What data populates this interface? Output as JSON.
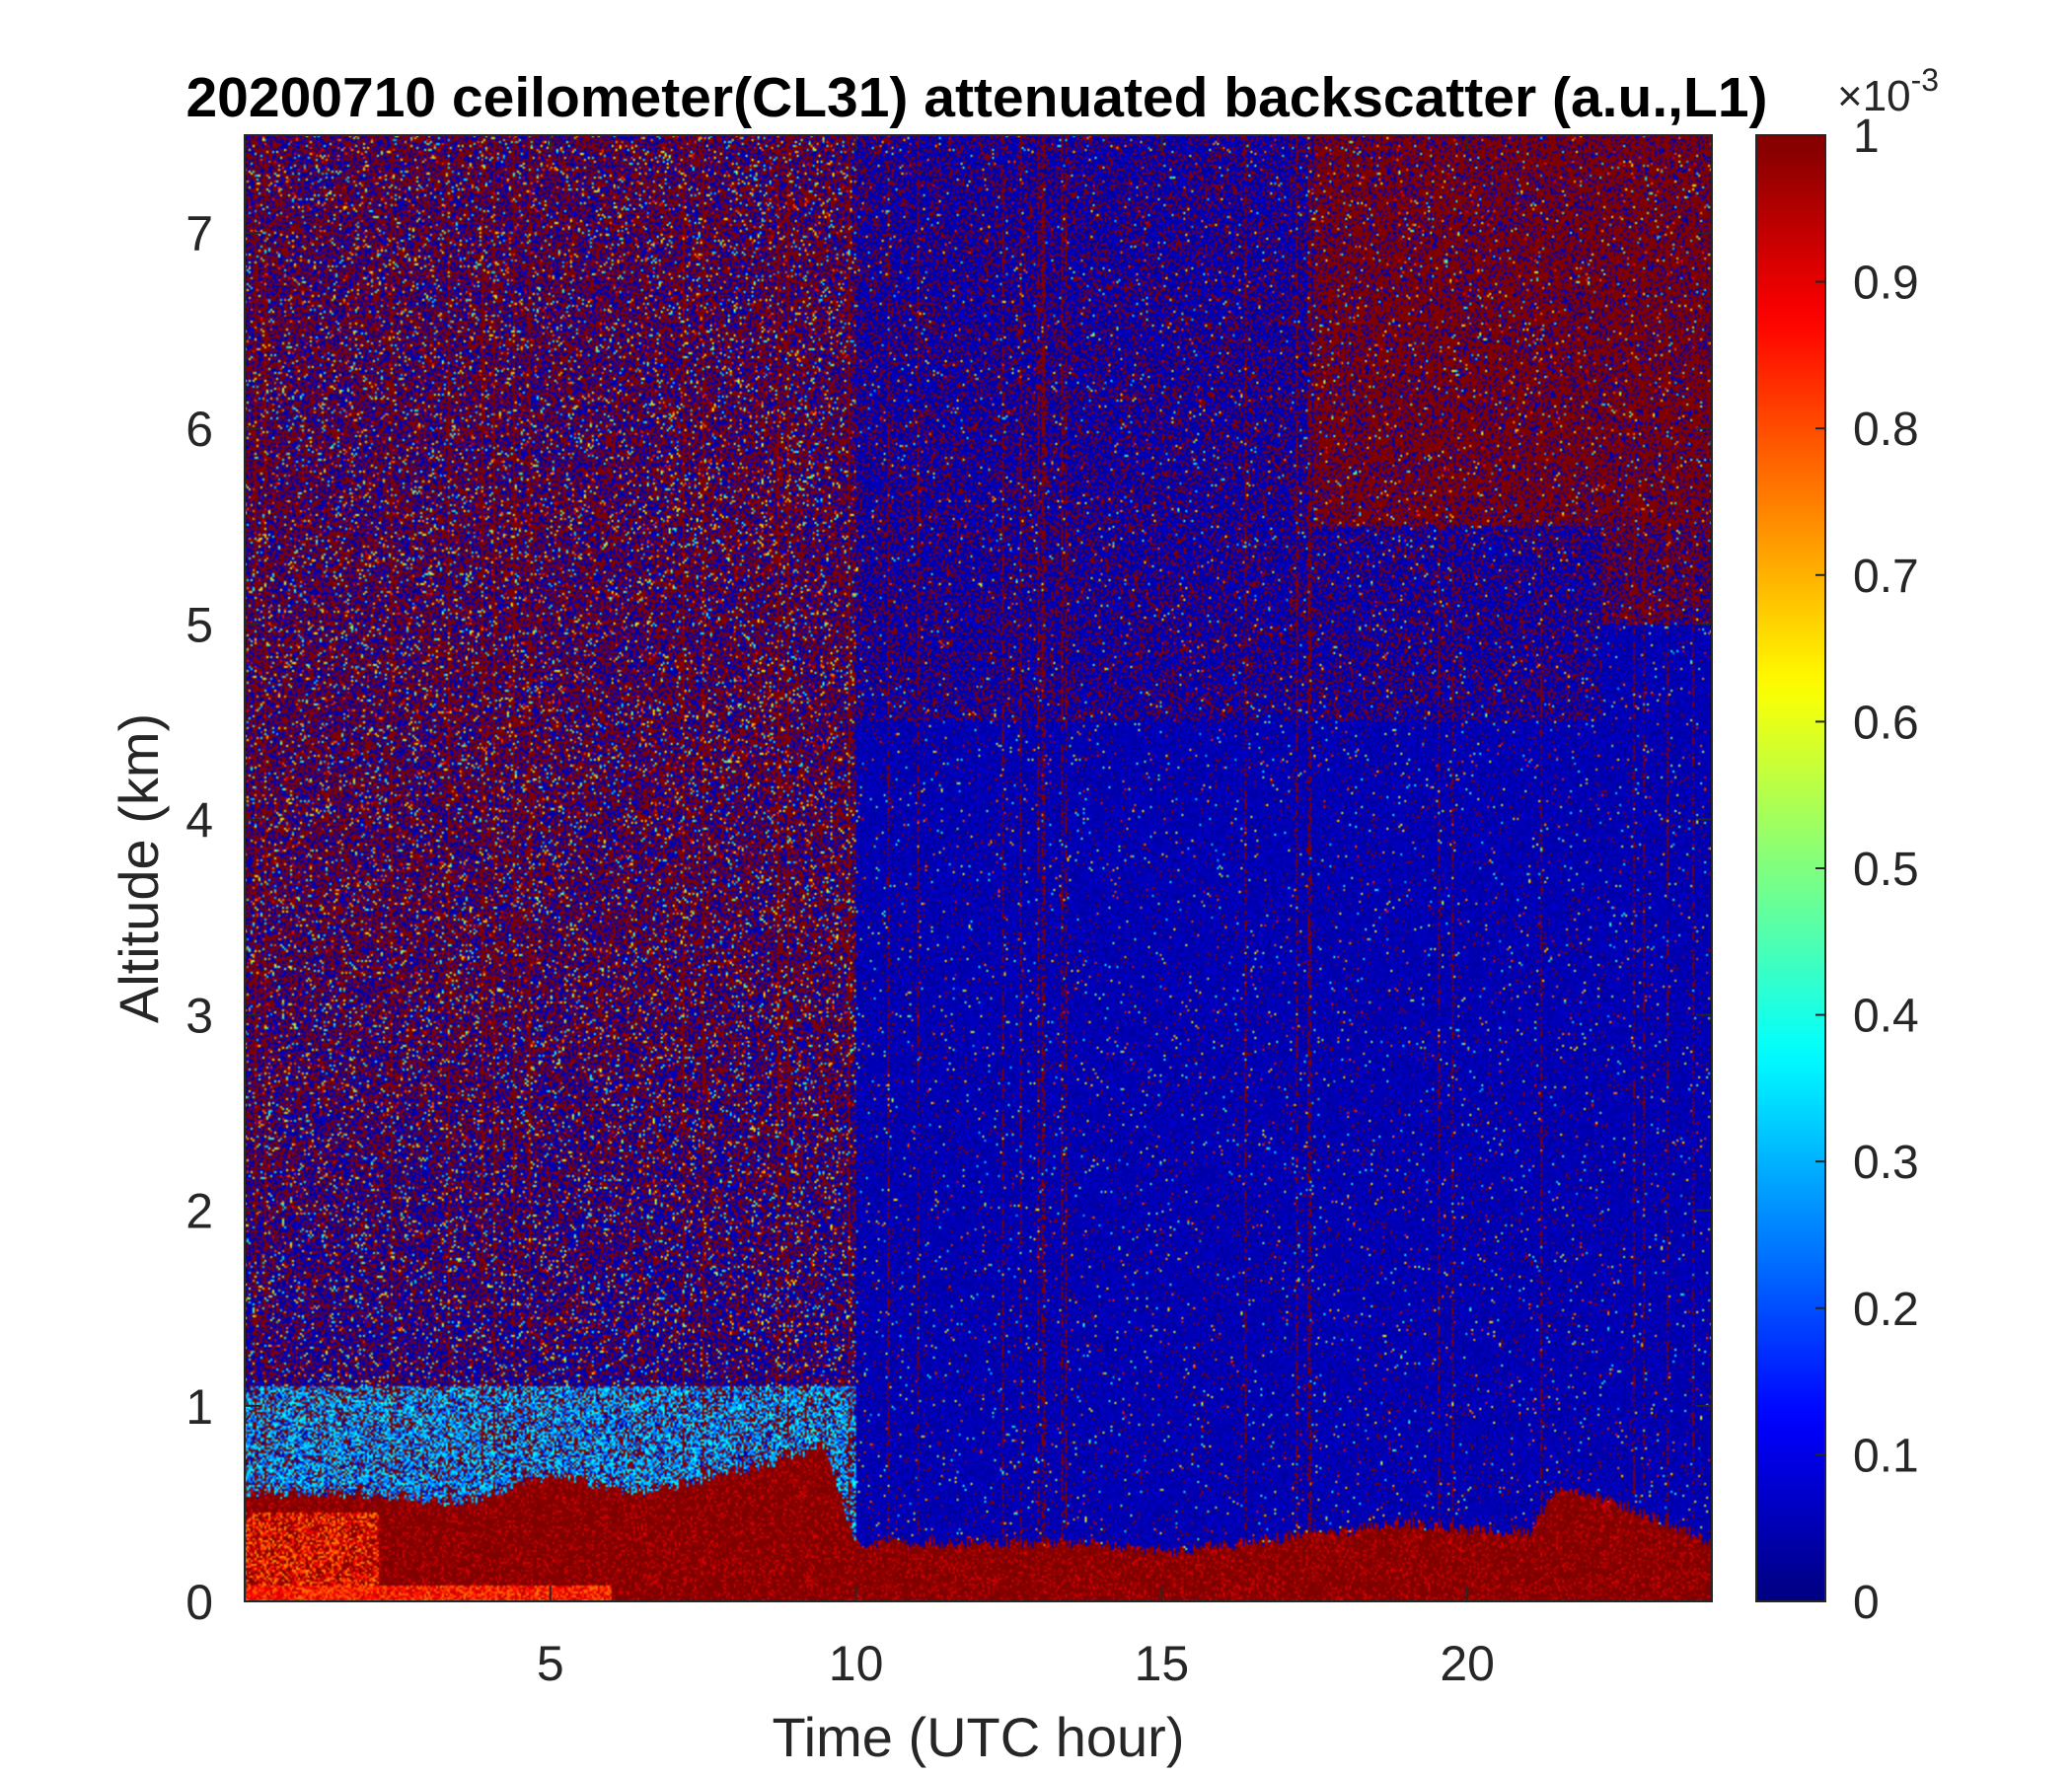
{
  "chart_data": {
    "type": "heatmap",
    "title": "20200710 ceilometer(CL31) attenuated backscatter (a.u.,L1)",
    "xlabel": "Time (UTC hour)",
    "ylabel": "Altitude (km)",
    "xlim": [
      0,
      24
    ],
    "ylim": [
      0,
      7.5
    ],
    "xticks": [
      5,
      10,
      15,
      20
    ],
    "yticks": [
      0,
      1,
      2,
      3,
      4,
      5,
      6,
      7
    ],
    "colormap": "jet",
    "colorbar": {
      "clim": [
        0,
        1
      ],
      "ticks": [
        0,
        0.1,
        0.2,
        0.3,
        0.4,
        0.5,
        0.6,
        0.7,
        0.8,
        0.9,
        1
      ],
      "exponent_base": "×10",
      "exponent": "-3"
    },
    "features": {
      "boundary_layer_top_km": [
        {
          "x": 0.0,
          "y": 0.55
        },
        {
          "x": 2.0,
          "y": 0.55
        },
        {
          "x": 3.5,
          "y": 0.5
        },
        {
          "x": 5.0,
          "y": 0.65
        },
        {
          "x": 6.5,
          "y": 0.55
        },
        {
          "x": 8.5,
          "y": 0.7
        },
        {
          "x": 9.5,
          "y": 0.8
        },
        {
          "x": 10.0,
          "y": 0.3
        },
        {
          "x": 14.0,
          "y": 0.3
        },
        {
          "x": 15.0,
          "y": 0.25
        },
        {
          "x": 19.0,
          "y": 0.4
        },
        {
          "x": 21.0,
          "y": 0.35
        },
        {
          "x": 21.5,
          "y": 0.6
        },
        {
          "x": 22.5,
          "y": 0.5
        },
        {
          "x": 24.0,
          "y": 0.3
        }
      ],
      "noisy_until_hour": 10.0,
      "high_signal_region": {
        "x": [
          17.5,
          24
        ],
        "y": [
          5.5,
          7.5
        ]
      }
    }
  }
}
